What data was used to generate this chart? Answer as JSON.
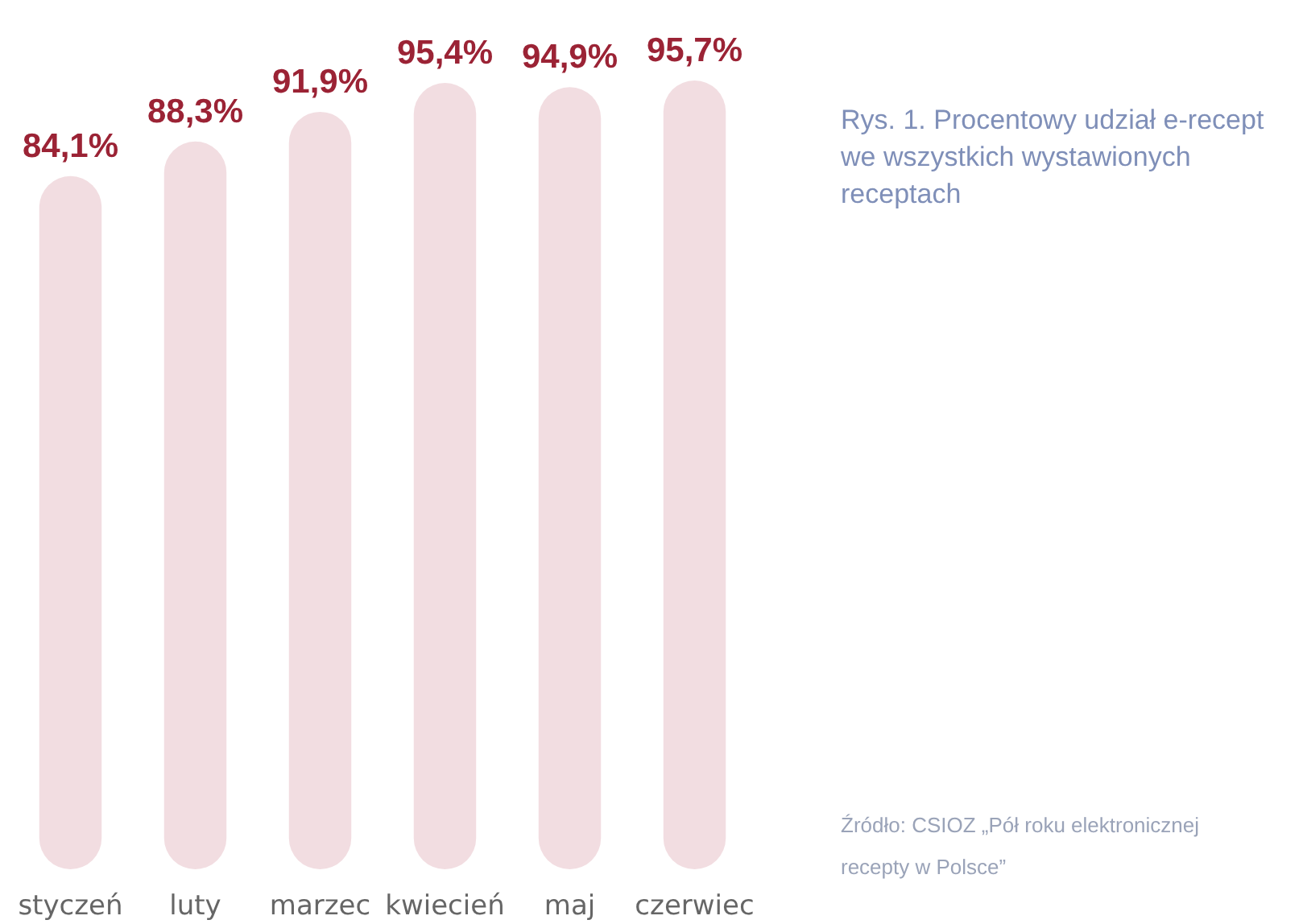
{
  "chart_data": {
    "type": "bar",
    "title": "Rys. 1. Procentowy udział e-recept we wszystkich wystawionych receptach",
    "categories": [
      "styczeń",
      "luty",
      "marzec",
      "kwiecień",
      "maj",
      "czerwiec"
    ],
    "values": [
      84.1,
      88.3,
      91.9,
      95.4,
      94.9,
      95.7
    ],
    "value_labels": [
      "84,1%",
      "88,3%",
      "91,9%",
      "95,4%",
      "94,9%",
      "95,7%"
    ],
    "color": "#f2dde1",
    "annotations": [
      "Źródło: CSIOZ „Pół roku elektronicznej recepty w Polsce”"
    ]
  }
}
